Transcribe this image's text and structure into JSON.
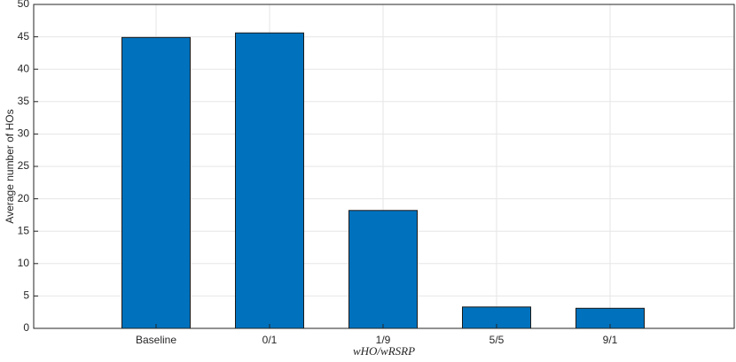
{
  "chart_data": {
    "type": "bar",
    "categories": [
      "Baseline",
      "0/1",
      "1/9",
      "5/5",
      "9/1"
    ],
    "values": [
      44.9,
      45.6,
      18.2,
      3.3,
      3.1
    ],
    "color": "#0072bd",
    "ylabel": "Average number of HOs",
    "xlabel": "wHO/wRSRP",
    "ylim": [
      0,
      50
    ],
    "yticks": [
      0,
      5,
      10,
      15,
      20,
      25,
      30,
      35,
      40,
      45,
      50
    ],
    "grid": true
  }
}
